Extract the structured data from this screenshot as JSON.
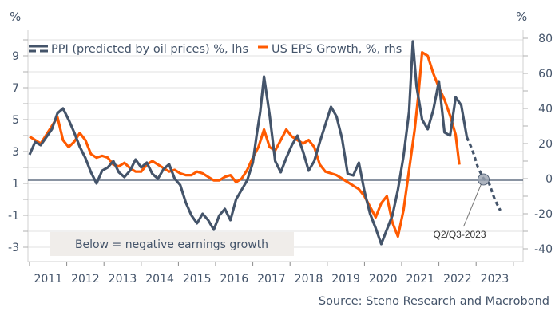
{
  "chart_data": {
    "type": "line",
    "title": "",
    "left_axis": {
      "unit_label": "%",
      "ylim": [
        -3.5,
        10.5
      ],
      "ticks": [
        9,
        7,
        5,
        3,
        1,
        -1,
        -3
      ],
      "tick_labels": [
        "9",
        "7",
        "5",
        "3",
        "1",
        "-1",
        "-3"
      ]
    },
    "right_axis": {
      "unit_label": "%",
      "ylim": [
        -42,
        88
      ],
      "ticks": [
        80,
        60,
        40,
        20,
        0,
        -20,
        -40
      ],
      "tick_labels": [
        "80",
        "60",
        "40",
        "20",
        "0",
        "-20",
        "-40"
      ]
    },
    "x_axis": {
      "categories": [
        "2011",
        "2012",
        "2013",
        "2014",
        "2015",
        "2016",
        "2017",
        "2018",
        "2019",
        "2020",
        "2021",
        "2022",
        "2023"
      ],
      "xlim": [
        2010.6,
        2023.9
      ]
    },
    "grid": true,
    "zero_line": {
      "axis": "rhs",
      "value": 0
    },
    "legend": {
      "position": "top-left",
      "entries": [
        {
          "name": "PPI (predicted by oil prices) %, lhs",
          "color": "#44546a",
          "style": "dashed-forecast"
        },
        {
          "name": "US EPS Growth, %, rhs",
          "color": "#ff5a00",
          "style": "solid"
        }
      ]
    },
    "series": [
      {
        "name": "PPI (predicted by oil prices) %, lhs",
        "axis": "lhs",
        "color": "#44546a",
        "x": [
          2011.0,
          2011.15,
          2011.3,
          2011.45,
          2011.6,
          2011.75,
          2011.9,
          2012.05,
          2012.2,
          2012.35,
          2012.5,
          2012.65,
          2012.8,
          2012.95,
          2013.1,
          2013.25,
          2013.4,
          2013.55,
          2013.7,
          2013.85,
          2014.0,
          2014.15,
          2014.3,
          2014.45,
          2014.6,
          2014.75,
          2014.9,
          2015.05,
          2015.2,
          2015.35,
          2015.5,
          2015.65,
          2015.8,
          2015.95,
          2016.1,
          2016.25,
          2016.4,
          2016.55,
          2016.7,
          2016.85,
          2017.0,
          2017.1,
          2017.2,
          2017.3,
          2017.45,
          2017.6,
          2017.75,
          2017.9,
          2018.05,
          2018.2,
          2018.35,
          2018.5,
          2018.65,
          2018.8,
          2018.95,
          2019.1,
          2019.25,
          2019.4,
          2019.55,
          2019.7,
          2019.85,
          2020.0,
          2020.15,
          2020.3,
          2020.45,
          2020.6,
          2020.75,
          2020.9,
          2021.05,
          2021.2,
          2021.3,
          2021.4,
          2021.55,
          2021.7,
          2021.85,
          2022.0,
          2022.15,
          2022.3,
          2022.45,
          2022.6,
          2022.75,
          2022.9,
          2023.05,
          2023.2,
          2023.35,
          2023.5,
          2023.65
        ],
        "values": [
          2.8,
          3.6,
          3.4,
          3.9,
          4.4,
          5.4,
          5.7,
          5.0,
          4.2,
          3.3,
          2.6,
          1.7,
          1.0,
          1.8,
          2.0,
          2.4,
          1.7,
          1.4,
          1.8,
          2.5,
          2.0,
          2.3,
          1.6,
          1.3,
          1.9,
          2.2,
          1.3,
          0.9,
          -0.2,
          -1.0,
          -1.5,
          -0.9,
          -1.3,
          -1.9,
          -1.0,
          -0.6,
          -1.3,
          0.0,
          0.6,
          1.2,
          2.3,
          4.0,
          5.5,
          7.7,
          5.3,
          2.4,
          1.7,
          2.6,
          3.4,
          4.0,
          3.0,
          1.8,
          2.4,
          3.6,
          4.7,
          5.8,
          5.2,
          3.8,
          1.6,
          1.5,
          2.3,
          0.5,
          -0.9,
          -1.8,
          -2.8,
          -1.9,
          -1.0,
          0.6,
          2.7,
          5.5,
          9.9,
          7.1,
          5.0,
          4.4,
          5.6,
          7.4,
          4.2,
          4.0,
          6.4,
          5.9,
          3.9,
          3.1,
          2.0,
          1.3,
          1.0,
          0.0,
          -0.7
        ],
        "forecast_from": 2022.75
      },
      {
        "name": "US EPS Growth, %, rhs",
        "axis": "rhs",
        "color": "#ff5a00",
        "x": [
          2011.0,
          2011.15,
          2011.3,
          2011.45,
          2011.6,
          2011.75,
          2011.9,
          2012.05,
          2012.2,
          2012.35,
          2012.5,
          2012.65,
          2012.8,
          2012.95,
          2013.1,
          2013.25,
          2013.4,
          2013.55,
          2013.7,
          2013.85,
          2014.0,
          2014.15,
          2014.3,
          2014.45,
          2014.6,
          2014.75,
          2014.9,
          2015.05,
          2015.2,
          2015.35,
          2015.5,
          2015.65,
          2015.8,
          2015.95,
          2016.1,
          2016.25,
          2016.4,
          2016.55,
          2016.7,
          2016.85,
          2017.0,
          2017.15,
          2017.3,
          2017.45,
          2017.6,
          2017.75,
          2017.9,
          2018.05,
          2018.2,
          2018.35,
          2018.5,
          2018.65,
          2018.8,
          2018.95,
          2019.1,
          2019.25,
          2019.4,
          2019.55,
          2019.7,
          2019.85,
          2020.0,
          2020.15,
          2020.3,
          2020.45,
          2020.6,
          2020.75,
          2020.9,
          2021.05,
          2021.2,
          2021.35,
          2021.45,
          2021.55,
          2021.7,
          2021.85,
          2022.0,
          2022.15,
          2022.3,
          2022.45,
          2022.55
        ],
        "values": [
          24,
          22,
          20,
          25,
          30,
          35,
          22,
          18,
          21,
          26,
          22,
          14,
          12,
          13,
          12,
          8,
          7,
          9,
          6,
          4,
          4,
          8,
          10,
          8,
          6,
          4,
          5,
          3,
          2,
          2,
          4,
          3,
          1,
          -1,
          -1,
          1,
          2,
          -2,
          0,
          5,
          12,
          18,
          28,
          18,
          16,
          22,
          28,
          24,
          22,
          20,
          22,
          18,
          8,
          4,
          3,
          2,
          0,
          -2,
          -4,
          -6,
          -10,
          -16,
          -22,
          -14,
          -10,
          -25,
          -33,
          -18,
          5,
          28,
          48,
          72,
          70,
          60,
          52,
          45,
          36,
          25,
          8
        ],
        "ends": 2022.55
      }
    ],
    "annotations": [
      {
        "text": "Below = negative earnings growth",
        "type": "shaded-box"
      },
      {
        "text": "Q2/Q3-2023",
        "type": "callout",
        "x": 2023.2,
        "axis": "lhs",
        "value": 1.2
      }
    ],
    "source": "Source: Steno Research and Macrobond"
  }
}
